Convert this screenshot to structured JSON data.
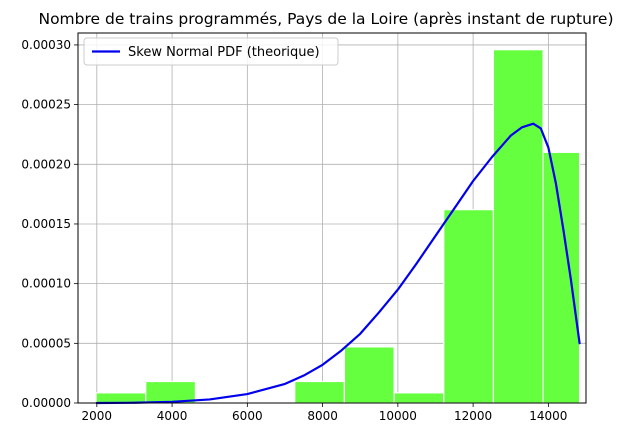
{
  "chart_data": {
    "type": "bar",
    "title": "Nombre de trains programmés, Pays de la Loire (après instant de rupture)",
    "xlabel": "",
    "ylabel": "",
    "xlim": [
      1500,
      15000
    ],
    "ylim": [
      0,
      0.00031
    ],
    "grid": true,
    "legend_position": "top-left",
    "x_ticks": [
      {
        "value": 2000,
        "label": "2000"
      },
      {
        "value": 4000,
        "label": "4000"
      },
      {
        "value": 6000,
        "label": "6000"
      },
      {
        "value": 8000,
        "label": "8000"
      },
      {
        "value": 10000,
        "label": "10000"
      },
      {
        "value": 12000,
        "label": "12000"
      },
      {
        "value": 14000,
        "label": "14000"
      }
    ],
    "y_ticks": [
      {
        "value": 0,
        "label": "0.00000"
      },
      {
        "value": 5e-05,
        "label": "0.00005"
      },
      {
        "value": 0.0001,
        "label": "0.00010"
      },
      {
        "value": 0.00015,
        "label": "0.00015"
      },
      {
        "value": 0.0002,
        "label": "0.00020"
      },
      {
        "value": 0.00025,
        "label": "0.00025"
      },
      {
        "value": 0.0003,
        "label": "0.00030"
      }
    ],
    "histogram": {
      "color": "#66ff3f",
      "edge_color": "#ffffff",
      "bin_edges": [
        1980,
        3300,
        4620,
        5940,
        7260,
        8580,
        9900,
        11220,
        12540,
        13860,
        15180
      ],
      "bar_right_edge": 14830,
      "values": [
        8.5e-06,
        1.8e-05,
        0,
        0,
        1.8e-05,
        4.7e-05,
        8.5e-06,
        0.000162,
        0.000296,
        0.00021
      ]
    },
    "series": [
      {
        "name": "Skew Normal PDF (theorique)",
        "type": "line",
        "color": "#0000ee",
        "x": [
          2000,
          3000,
          4000,
          5000,
          6000,
          7000,
          7500,
          8000,
          8500,
          9000,
          9500,
          10000,
          10500,
          11000,
          11500,
          12000,
          12500,
          13000,
          13300,
          13600,
          13800,
          14000,
          14200,
          14400,
          14600,
          14830
        ],
        "y": [
          0,
          2e-07,
          1e-06,
          3e-06,
          7.5e-06,
          1.6e-05,
          2.3e-05,
          3.2e-05,
          4.4e-05,
          5.8e-05,
          7.6e-05,
          9.5e-05,
          0.000117,
          0.00014,
          0.000163,
          0.000186,
          0.000206,
          0.000224,
          0.000231,
          0.000234,
          0.00023,
          0.000214,
          0.000184,
          0.000145,
          0.000103,
          5e-05
        ]
      }
    ]
  }
}
